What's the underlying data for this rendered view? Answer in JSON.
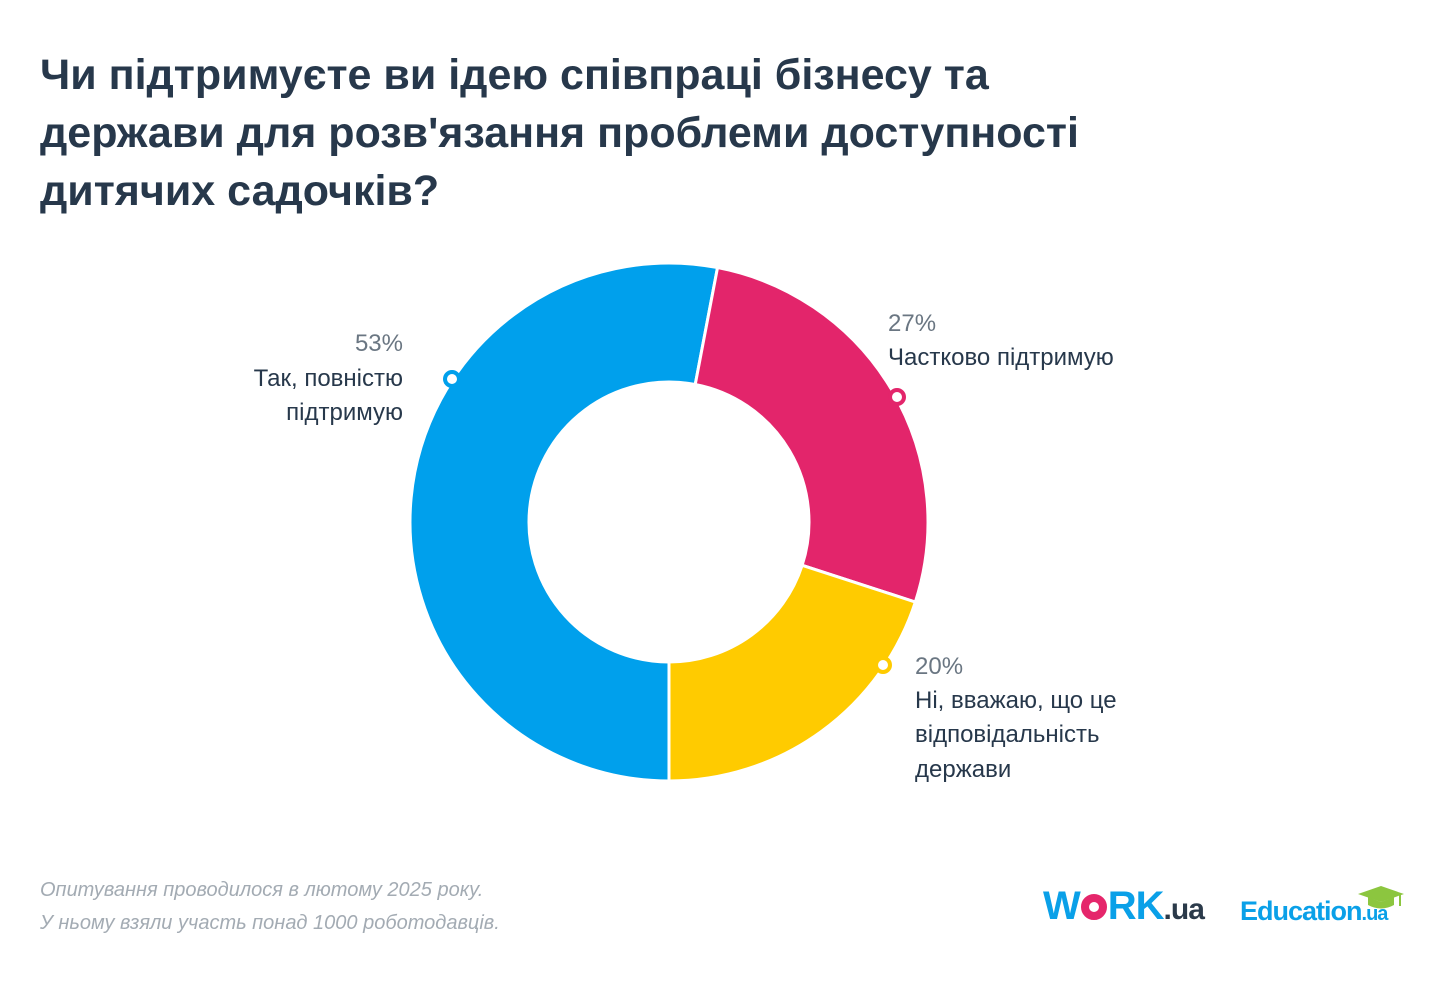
{
  "chart_data": {
    "type": "pie",
    "title_lines": [
      "Чи підтримуєте ви ідею співпраці бізнесу та",
      "держави для розв'язання проблеми доступності",
      "дитячих садочків?"
    ],
    "slices": [
      {
        "value": 53,
        "label": "53%",
        "category_lines": [
          "Так, повністю",
          "підтримую"
        ],
        "color": "#00a0ec"
      },
      {
        "value": 27,
        "label": "27%",
        "category_lines": [
          "Частково підтримую"
        ],
        "color": "#e3256b"
      },
      {
        "value": 20,
        "label": "20%",
        "category_lines": [
          "Ні, вважаю, що це",
          "відповідальність",
          "держави"
        ],
        "color": "#ffcb00"
      }
    ]
  },
  "footnote_lines": [
    "Опитування проводилося в лютому 2025 року.",
    "У ньому взяли участь понад 1000 роботодавців."
  ],
  "logos": {
    "work_prefix": "W",
    "work_suffix": "RK",
    "work_domain": ".ua",
    "education_name": "Education",
    "education_domain": ".ua"
  }
}
